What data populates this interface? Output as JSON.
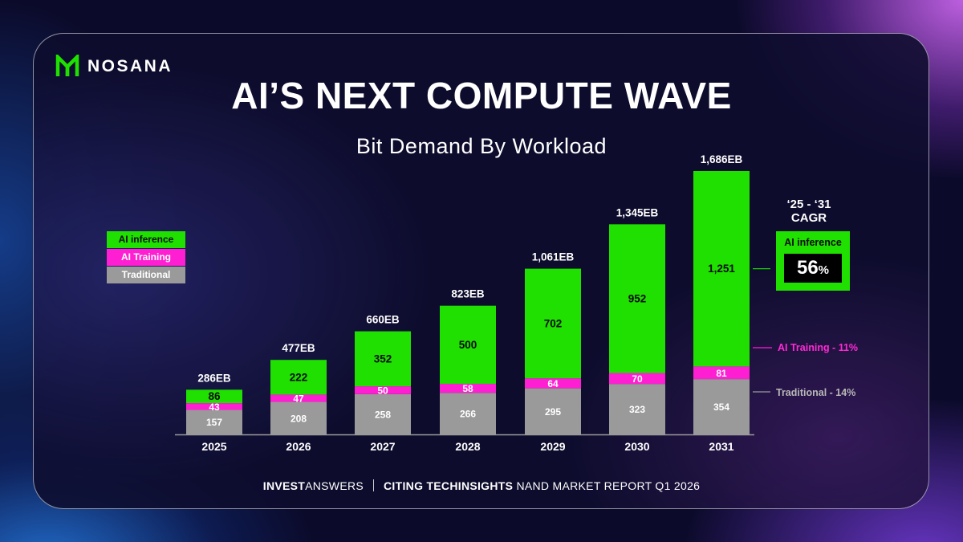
{
  "brand": {
    "name": "NOSANA",
    "accent": "#1fe000"
  },
  "header": {
    "title": "AI’S NEXT COMPUTE WAVE",
    "subtitle": "Bit Demand By Workload"
  },
  "legend": {
    "items": [
      {
        "label": "AI inference",
        "color": "#1fe000",
        "text_color": "#0a0a0a"
      },
      {
        "label": "AI Training",
        "color": "#ff1fd2",
        "text_color": "#ffffff"
      },
      {
        "label": "Traditional",
        "color": "#9a9a9a",
        "text_color": "#ffffff"
      }
    ]
  },
  "cagr": {
    "heading_line1": "‘25 - ‘31",
    "heading_line2": "CAGR",
    "inference_label": "AI inference",
    "inference_value": "56",
    "inference_unit": "%",
    "training_label": "AI Training - 11%",
    "traditional_label": "Traditional - 14%"
  },
  "footer": {
    "source_bold": "INVEST",
    "source_rest": "ANSWERS",
    "cite_bold": "CITING TECHINSIGHTS",
    "cite_rest": " NAND MARKET REPORT Q1 2026"
  },
  "chart_data": {
    "type": "bar",
    "stacked": true,
    "title": "Bit Demand By Workload",
    "categories": [
      "2025",
      "2026",
      "2027",
      "2028",
      "2029",
      "2030",
      "2031"
    ],
    "series": [
      {
        "name": "Traditional",
        "color": "#9a9a9a",
        "values": [
          157,
          208,
          258,
          266,
          295,
          323,
          354
        ]
      },
      {
        "name": "AI Training",
        "color": "#ff1fd2",
        "values": [
          43,
          47,
          50,
          58,
          64,
          70,
          81
        ]
      },
      {
        "name": "AI inference",
        "color": "#1fe000",
        "values": [
          86,
          222,
          352,
          500,
          702,
          952,
          1251
        ]
      }
    ],
    "totals": [
      "286EB",
      "477EB",
      "660EB",
      "823EB",
      "1,061EB",
      "1,345EB",
      "1,686EB"
    ],
    "value_labels": [
      [
        "157",
        "208",
        "258",
        "266",
        "295",
        "323",
        "354"
      ],
      [
        "43",
        "47",
        "50",
        "58",
        "64",
        "70",
        "81"
      ],
      [
        "86",
        "222",
        "352",
        "500",
        "702",
        "952",
        "1,251"
      ]
    ],
    "ylim": [
      0,
      1686
    ],
    "grid": false,
    "legend_position": "left"
  }
}
